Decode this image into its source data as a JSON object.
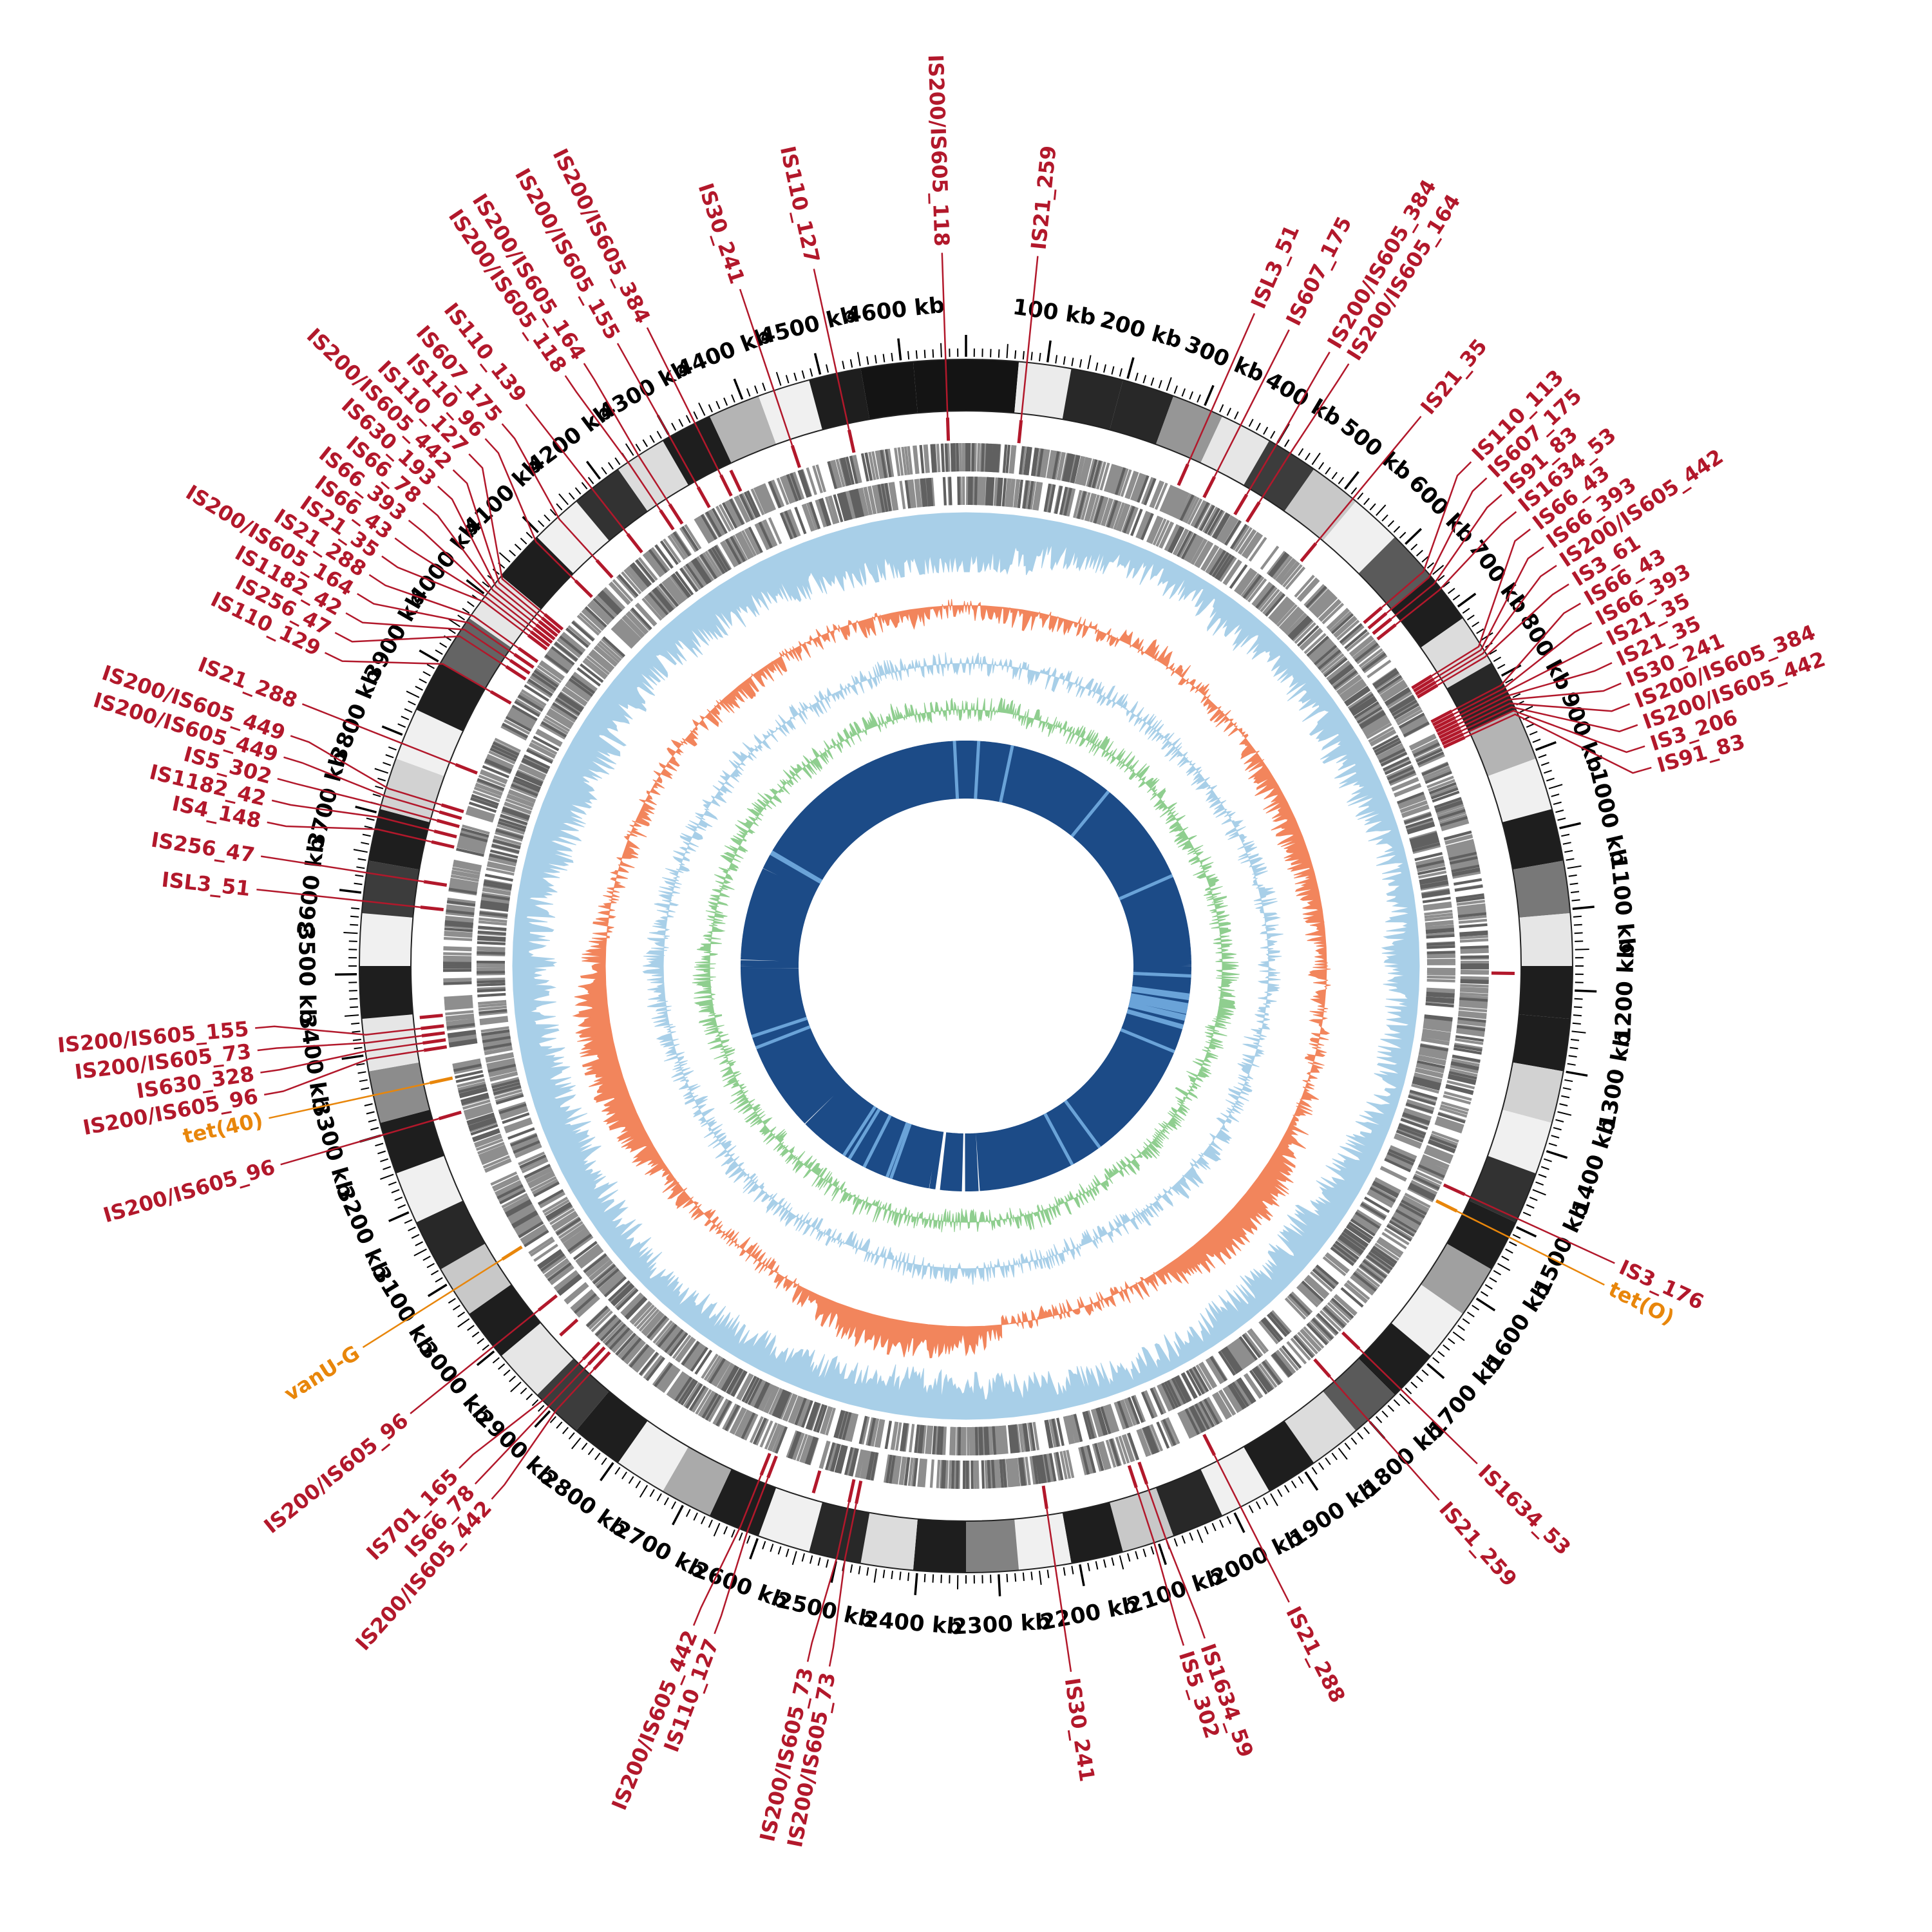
{
  "background": "#ffffff",
  "colors": {
    "red": "#b2182b",
    "orange": "#e8860b",
    "navy": "#1c4b87",
    "navy_light": "#6aa3d8",
    "blue": "#a8cfe8",
    "green": "#8fce8f",
    "coral": "#f2855c",
    "gray_bar": "#8e8e8e",
    "axis": "#000000"
  },
  "chart_data": {
    "type": "circular-genome-plot",
    "genome_length_kb": 4680,
    "axis": {
      "unit": "kb",
      "major_tick_kb": 100,
      "minor_tick_kb": 10,
      "labels": [
        "100 kb",
        "200 kb",
        "300 kb",
        "400 kb",
        "500 kb",
        "600 kb",
        "700 kb",
        "800 kb",
        "900 kb",
        "1000 kb",
        "1100 kb",
        "1200 kb",
        "1300 kb",
        "1400 kb",
        "1500 kb",
        "1600 kb",
        "1700 kb",
        "1800 kb",
        "1900 kb",
        "2000 kb",
        "2100 kb",
        "2200 kb",
        "2300 kb",
        "2400 kb",
        "2500 kb",
        "2600 kb",
        "2700 kb",
        "2800 kb",
        "2900 kb",
        "3000 kb",
        "3100 kb",
        "3200 kb",
        "3300 kb",
        "3400 kb",
        "3500 kb",
        "3600 kb",
        "3700 kb",
        "3800 kb",
        "3900 kb",
        "4000 kb",
        "4100 kb",
        "4200 kb",
        "4300 kb",
        "4400 kb",
        "4500 kb",
        "4600 kb"
      ]
    },
    "gray_ring_levels": [
      20,
      235,
      40,
      40,
      150,
      230,
      60,
      200,
      240,
      90,
      30,
      220,
      40,
      180,
      240,
      30,
      120,
      230,
      30,
      30,
      210,
      240,
      50,
      30,
      160,
      240,
      30,
      90,
      220,
      30,
      240,
      40,
      200,
      30,
      240,
      130,
      30,
      220,
      40,
      240,
      30,
      170,
      240,
      30,
      60,
      230,
      30,
      200,
      40,
      240,
      30,
      140,
      230,
      30,
      240,
      60,
      30,
      210,
      240,
      30,
      100,
      230,
      30,
      240,
      50,
      220,
      30,
      180,
      240,
      30,
      20,
      20
    ],
    "rings": [
      {
        "name": "sequence-blocks",
        "type": "blocks",
        "style": "grayscale"
      },
      {
        "name": "is-ticks",
        "type": "ticks",
        "color": "#b2182b"
      },
      {
        "name": "genes-outer",
        "type": "barcode",
        "color": "#8e8e8e"
      },
      {
        "name": "genes-inner",
        "type": "barcode",
        "color": "#8e8e8e"
      },
      {
        "name": "histogram-blue-outer",
        "type": "histogram",
        "color": "#a8cfe8",
        "values": [
          0.92,
          0.75,
          0.5,
          0.38,
          0.35,
          0.45,
          0.4,
          0.38,
          0.5,
          0.42,
          0.3,
          0.32,
          0.45,
          0.35,
          0.3,
          0.38,
          0.5,
          0.55,
          0.45,
          0.4,
          0.35,
          0.3,
          0.42,
          0.5,
          0.55,
          0.6,
          0.5,
          0.45,
          0.4,
          0.38,
          0.35,
          0.42,
          0.5,
          0.58,
          0.52,
          0.48,
          0.5,
          0.42,
          0.55,
          0.65,
          0.6,
          0.5,
          0.45,
          0.55,
          0.6,
          0.7,
          0.82,
          0.9
        ]
      },
      {
        "name": "histogram-orange",
        "type": "histogram",
        "color": "#f2855c",
        "values": [
          0.45,
          0.35,
          0.4,
          0.5,
          0.6,
          0.55,
          0.45,
          0.4,
          0.3,
          0.28,
          0.3,
          0.35,
          0.4,
          0.45,
          0.5,
          0.6,
          0.75,
          0.88,
          0.9,
          0.8,
          0.6,
          0.5,
          0.45,
          0.5,
          0.75,
          0.85,
          0.88,
          0.75,
          0.55,
          0.45,
          0.5,
          0.6,
          0.72,
          0.85,
          0.9,
          0.85,
          0.7,
          0.55,
          0.45,
          0.4,
          0.45,
          0.5,
          0.42,
          0.38,
          0.42,
          0.46,
          0.4,
          0.38
        ]
      },
      {
        "name": "histogram-blue-inner",
        "type": "histogram",
        "color": "#a8cfe8",
        "values": [
          0.5,
          0.45,
          0.42,
          0.5,
          0.55,
          0.5,
          0.46,
          0.42,
          0.46,
          0.52,
          0.56,
          0.6,
          0.52,
          0.46,
          0.42,
          0.46,
          0.52,
          0.6,
          0.64,
          0.58,
          0.5,
          0.46,
          0.5,
          0.55,
          0.6,
          0.55,
          0.5,
          0.46,
          0.5,
          0.56,
          0.6,
          0.52,
          0.46,
          0.5,
          0.56,
          0.62,
          0.66,
          0.6,
          0.54,
          0.5,
          0.46,
          0.5,
          0.55,
          0.5,
          0.46,
          0.5,
          0.55,
          0.5
        ]
      },
      {
        "name": "histogram-green",
        "type": "histogram",
        "color": "#8fce8f",
        "values": [
          0.5,
          0.55,
          0.5,
          0.46,
          0.52,
          0.6,
          0.55,
          0.5,
          0.46,
          0.5,
          0.56,
          0.5,
          0.6,
          0.65,
          0.55,
          0.5,
          0.46,
          0.52,
          0.6,
          0.55,
          0.5,
          0.55,
          0.6,
          0.5,
          0.46,
          0.5,
          0.55,
          0.62,
          0.56,
          0.5,
          0.46,
          0.55,
          0.6,
          0.52,
          0.56,
          0.65,
          0.6,
          0.5,
          0.46,
          0.5,
          0.56,
          0.6,
          0.5,
          0.46,
          0.52,
          0.56,
          0.6,
          0.52
        ]
      },
      {
        "name": "blocks-navy",
        "type": "blocks",
        "color": "#1c4b87",
        "density": [
          0.96,
          0.95,
          0.9,
          0.93,
          0.95,
          0.9,
          0.86,
          0.9,
          0.95,
          0.9,
          0.92,
          0.95,
          0.9,
          0.88,
          0.92,
          0.9,
          0.95,
          0.9,
          0.86,
          0.9,
          0.92,
          0.9,
          0.88,
          0.55,
          0.25,
          0.5,
          0.86,
          0.9,
          0.92,
          0.9,
          0.6,
          0.86,
          0.9,
          0.92,
          0.9,
          0.88,
          0.9,
          0.93,
          0.95,
          0.9,
          0.88,
          0.9,
          0.93,
          0.95,
          0.9,
          0.92,
          0.95,
          0.96
        ]
      }
    ],
    "is_elements": [
      {
        "name": "IS21_259",
        "kb": 75
      },
      {
        "name": "ISL3_51",
        "kb": 310
      },
      {
        "name": "IS607_175",
        "kb": 350
      },
      {
        "name": "IS200/IS605_384",
        "kb": 400
      },
      {
        "name": "IS200/IS605_164",
        "kb": 420
      },
      {
        "name": "IS21_35",
        "kb": 515
      },
      {
        "name": "IS110_113",
        "kb": 640
      },
      {
        "name": "IS607_175",
        "kb": 650
      },
      {
        "name": "IS91_83",
        "kb": 660
      },
      {
        "name": "IS1634_53",
        "kb": 670
      },
      {
        "name": "IS66_43",
        "kb": 755
      },
      {
        "name": "IS66_393",
        "kb": 760
      },
      {
        "name": "IS200/IS605_442",
        "kb": 765
      },
      {
        "name": "IS3_61",
        "kb": 770
      },
      {
        "name": "IS66_43",
        "kb": 810
      },
      {
        "name": "IS66_393",
        "kb": 815
      },
      {
        "name": "IS21_35",
        "kb": 820
      },
      {
        "name": "IS21_35",
        "kb": 825
      },
      {
        "name": "IS30_241",
        "kb": 830
      },
      {
        "name": "IS200/IS605_384",
        "kb": 835
      },
      {
        "name": "IS200/IS605_442",
        "kb": 840
      },
      {
        "name": "IS3_206",
        "kb": 845
      },
      {
        "name": "IS91_83",
        "kb": 850
      },
      {
        "name": "IS3_176",
        "kb": 1490
      },
      {
        "name": "IS1634_53",
        "kb": 1745
      },
      {
        "name": "IS21_259",
        "kb": 1800
      },
      {
        "name": "IS21_288",
        "kb": 1990
      },
      {
        "name": "IS1634_59",
        "kb": 2090
      },
      {
        "name": "IS5_302",
        "kb": 2105
      },
      {
        "name": "IS30_241",
        "kb": 2230
      },
      {
        "name": "IS200/IS605_73",
        "kb": 2490
      },
      {
        "name": "IS200/IS605_73",
        "kb": 2500
      },
      {
        "name": "IS110_127",
        "kb": 2615
      },
      {
        "name": "IS200/IS605_442",
        "kb": 2625
      },
      {
        "name": "IS200/IS605_442",
        "kb": 2895
      },
      {
        "name": "IS66_78",
        "kb": 2905
      },
      {
        "name": "IS701_165",
        "kb": 2915
      },
      {
        "name": "IS200/IS605_96",
        "kb": 3005
      },
      {
        "name": "IS200/IS605_96",
        "kb": 3300
      },
      {
        "name": "IS200/IS605_96",
        "kb": 3395
      },
      {
        "name": "IS630_328",
        "kb": 3405
      },
      {
        "name": "IS200/IS605_73",
        "kb": 3415
      },
      {
        "name": "IS200/IS605_155",
        "kb": 3425
      },
      {
        "name": "ISL3_51",
        "kb": 3590
      },
      {
        "name": "IS256_47",
        "kb": 3625
      },
      {
        "name": "IS4_148",
        "kb": 3680
      },
      {
        "name": "IS1182_42",
        "kb": 3695
      },
      {
        "name": "IS5_302",
        "kb": 3710
      },
      {
        "name": "IS200/IS605_449",
        "kb": 3722
      },
      {
        "name": "IS200/IS605_449",
        "kb": 3732
      },
      {
        "name": "IS21_288",
        "kb": 3790
      },
      {
        "name": "IS110_129",
        "kb": 3900
      },
      {
        "name": "IS256_47",
        "kb": 3940
      },
      {
        "name": "IS1182_42",
        "kb": 3950
      },
      {
        "name": "IS200/IS605_164",
        "kb": 3960
      },
      {
        "name": "IS21_288",
        "kb": 3970
      },
      {
        "name": "IS21_35",
        "kb": 3992
      },
      {
        "name": "IS66_43",
        "kb": 3998
      },
      {
        "name": "IS66_393",
        "kb": 4004
      },
      {
        "name": "IS66_78",
        "kb": 4010
      },
      {
        "name": "IS630_193",
        "kb": 4016
      },
      {
        "name": "IS200/IS605_442",
        "kb": 4022
      },
      {
        "name": "IS110_127",
        "kb": 4028
      },
      {
        "name": "IS110_96",
        "kb": 4090
      },
      {
        "name": "IS607_175",
        "kb": 4130
      },
      {
        "name": "IS110_139",
        "kb": 4185
      },
      {
        "name": "IS200/IS605_118",
        "kb": 4240
      },
      {
        "name": "IS200/IS605_164",
        "kb": 4255
      },
      {
        "name": "IS200/IS605_155",
        "kb": 4300
      },
      {
        "name": "IS200/IS605_384",
        "kb": 4335
      },
      {
        "name": "IS30_241",
        "kb": 4440
      },
      {
        "name": "IS110_127",
        "kb": 4520
      },
      {
        "name": "IS200/IS605_118",
        "kb": 4655
      }
    ],
    "resistance_genes": [
      {
        "name": "tet(O)",
        "kb": 1515
      },
      {
        "name": "vanU-G",
        "kb": 3090
      },
      {
        "name": "tet(40)",
        "kb": 3350
      }
    ],
    "extra_red_ticks": [
      660,
      1180,
      2550,
      2960,
      3440,
      4350
    ]
  }
}
